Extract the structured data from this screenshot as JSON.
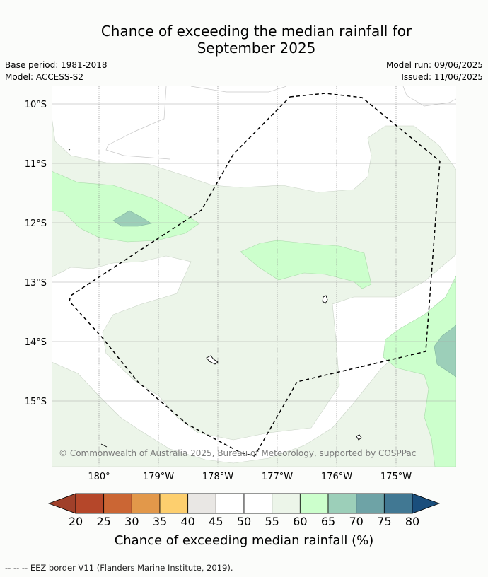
{
  "title": {
    "line1": "Chance of exceeding the median rainfall for",
    "line2": "September 2025"
  },
  "meta": {
    "base_period": "Base period: 1981-2018",
    "model": "Model: ACCESS-S2",
    "model_run": "Model run: 09/06/2025",
    "issued": "Issued: 11/06/2025"
  },
  "map": {
    "lat_labels": [
      "10°S",
      "11°S",
      "12°S",
      "13°S",
      "14°S",
      "15°S"
    ],
    "lon_labels": [
      "180°",
      "179°W",
      "178°W",
      "177°W",
      "176°W",
      "175°W"
    ],
    "copyright": "© Commonwealth of Australia 2025, Bureau of Meteorology, supported by COSPPac"
  },
  "legend": {
    "title": "Chance of exceeding median rainfall (%)",
    "ticks": [
      "20",
      "25",
      "30",
      "35",
      "40",
      "45",
      "50",
      "55",
      "60",
      "65",
      "70",
      "75",
      "80"
    ],
    "colors": [
      "#b5472a",
      "#cb6634",
      "#e2984a",
      "#fdcf6e",
      "#e9e7e4",
      "#ffffff",
      "#ffffff",
      "#ecf5e9",
      "#ccffcc",
      "#9ccfb9",
      "#6ea3a6",
      "#417893"
    ],
    "under_color": "#a0402a",
    "over_color": "#1a4e7c"
  },
  "footnote": "--  --  -- EEZ border V11 (Flanders Marine Institute, 2019)."
}
